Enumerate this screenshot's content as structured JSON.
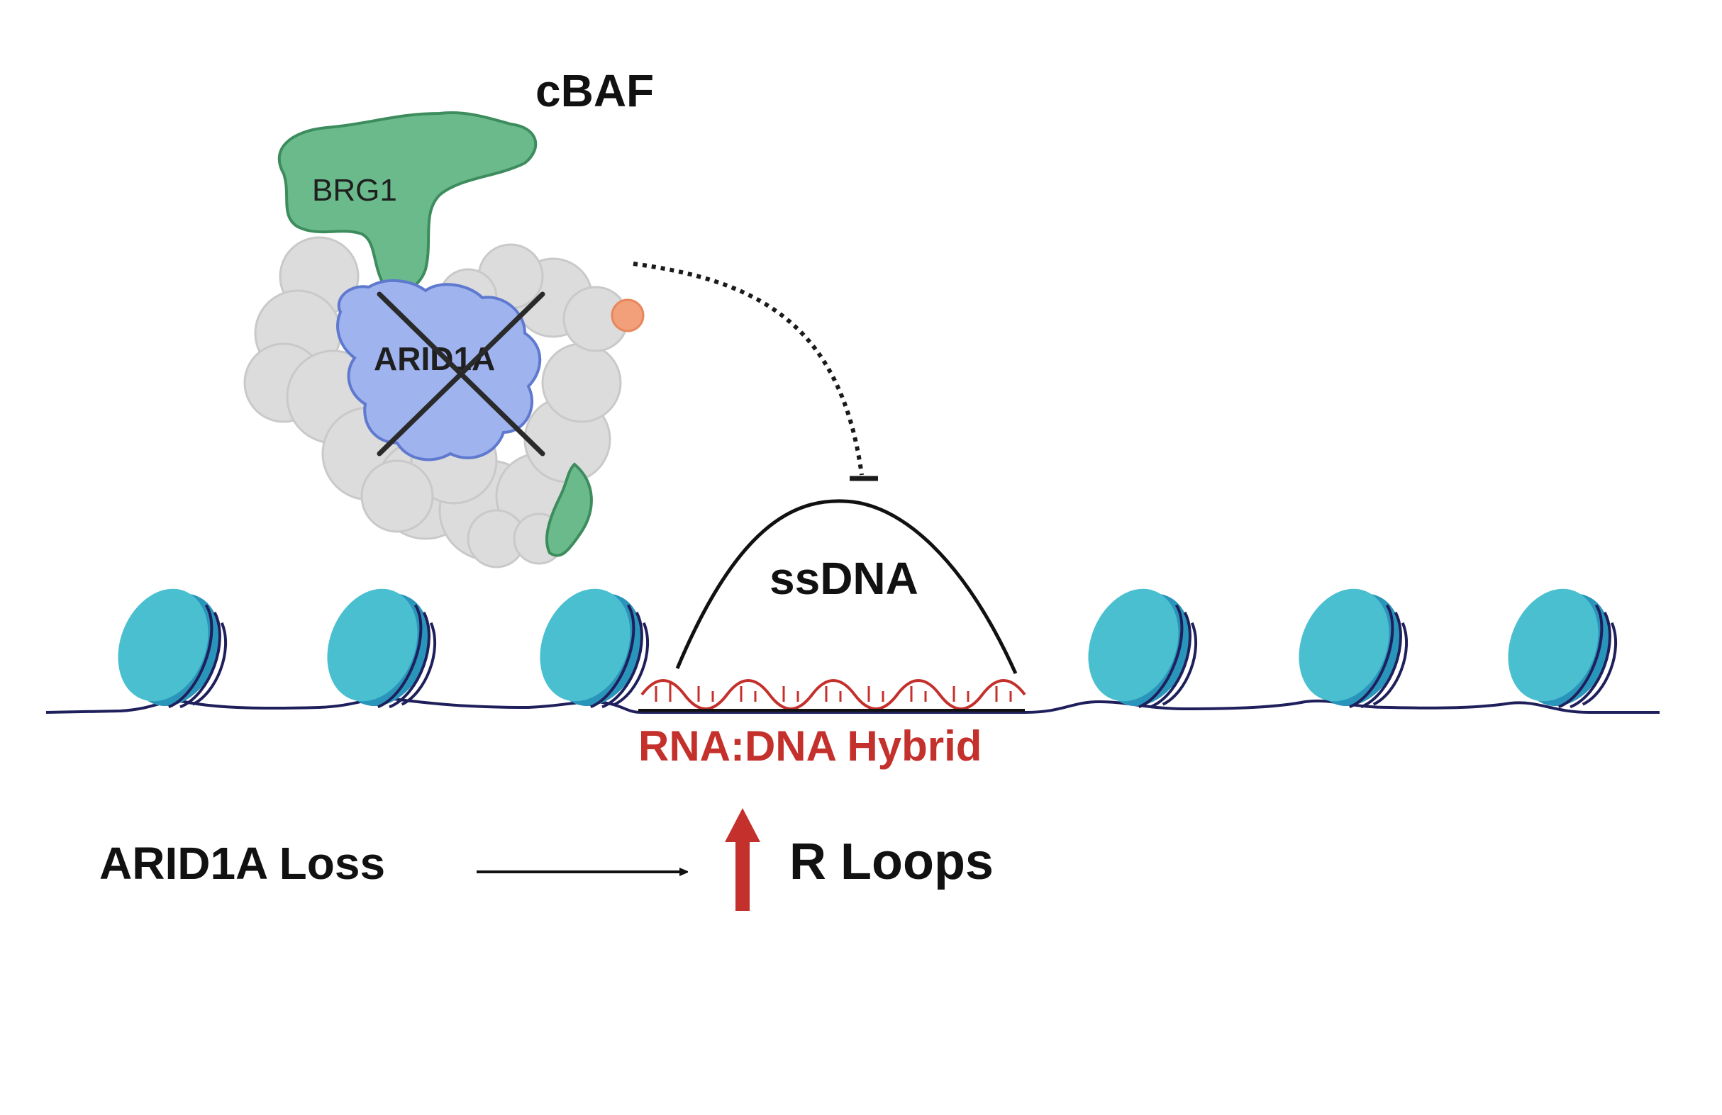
{
  "labels": {
    "complex": "cBAF",
    "brg1": "BRG1",
    "arid1a": "ARID1A",
    "ssdna": "ssDNA",
    "hybrid": "RNA:DNA Hybrid",
    "cause": "ARID1A Loss",
    "effect": "R Loops"
  },
  "colors": {
    "brg1": "#5aae7e",
    "arid1a": "#98aef0",
    "scaffold": "#d9d9d9",
    "nucleosome": "#3fb7cc",
    "dna": "#1f1f5c",
    "rna": "#c4302b",
    "text": "#111111"
  },
  "icons": {
    "knockout": "cross-mark-icon",
    "inhibition": "dotted-inhibition-arrow-icon",
    "increase": "up-arrow-icon"
  },
  "nucleosome_count": 6
}
